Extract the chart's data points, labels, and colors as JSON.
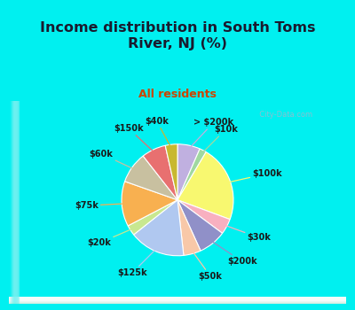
{
  "title": "Income distribution in South Toms\nRiver, NJ (%)",
  "subtitle": "All residents",
  "labels": [
    "> $200k",
    "$10k",
    "$100k",
    "$30k",
    "$200k",
    "$50k",
    "$125k",
    "$20k",
    "$75k",
    "$60k",
    "$150k",
    "$40k"
  ],
  "sizes": [
    6.5,
    2.0,
    22,
    4.5,
    8,
    5,
    16,
    3,
    13,
    9,
    7,
    3.5
  ],
  "colors": [
    "#c0b0e0",
    "#a0d8a0",
    "#f8f870",
    "#f8b0c0",
    "#9090c8",
    "#f8c8a8",
    "#b0c8f0",
    "#c8e890",
    "#f8b050",
    "#c8c0a0",
    "#e87070",
    "#c8b830"
  ],
  "bg_color": "#00f0f0",
  "title_color": "#1a1a2e",
  "subtitle_color": "#cc4400",
  "watermark": "  City-Data.com",
  "watermark_color": "#a0b8cc"
}
